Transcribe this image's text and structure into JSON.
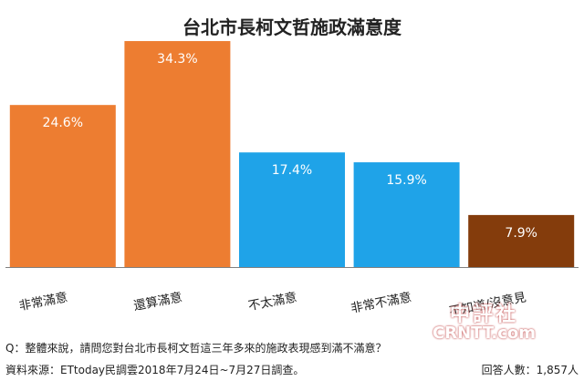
{
  "chart_data": {
    "type": "bar",
    "title": "台北市長柯文哲施政滿意度",
    "categories": [
      "非常滿意",
      "還算滿意",
      "不太滿意",
      "非常不滿意",
      "不知道/沒意見"
    ],
    "values": [
      24.6,
      34.3,
      17.4,
      15.9,
      7.9
    ],
    "value_labels": [
      "24.6%",
      "34.3%",
      "17.4%",
      "15.9%",
      "7.9%"
    ],
    "colors": [
      "#ED7D31",
      "#ED7D31",
      "#1FA3E8",
      "#1FA3E8",
      "#843C0C"
    ],
    "ylim": [
      0,
      35
    ],
    "xlabel": "",
    "ylabel": "",
    "grid": false,
    "legend": "none"
  },
  "footer": {
    "question": "Q：整體來說，請問您對台北市長柯文哲這三年多來的施政表現感到滿不滿意？",
    "source": "資料來源：ETtoday民調雲2018年7月24日~7月27日調查。",
    "sample": "回答人數：1,857人"
  },
  "watermark": {
    "line1": "中評社",
    "line2": "CRNTT.com"
  }
}
